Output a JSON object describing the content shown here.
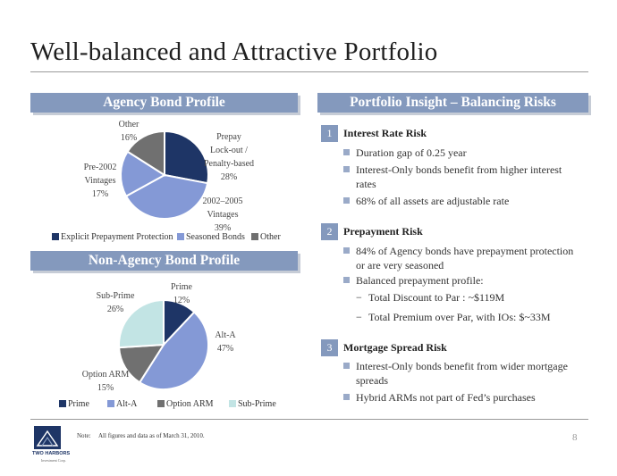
{
  "slide": {
    "title": "Well-balanced and Attractive Portfolio",
    "page_number": "8",
    "note_label": "Note:",
    "note_text": "All figures and data as of March 31, 2010.",
    "logo_name": "TWO HARBORS",
    "logo_sub": "Investment Corp."
  },
  "colors": {
    "banner": "#8499bd",
    "navy": "#1e3566",
    "blue": "#8499d6",
    "gray": "#707070",
    "mint": "#c2e4e4"
  },
  "left": {
    "agency_banner": "Agency Bond Profile",
    "nonagency_banner": "Non-Agency Bond Profile"
  },
  "chart_data": [
    {
      "type": "pie",
      "title": "Agency Bond Profile",
      "slices": [
        {
          "label": "Prepay Lock-out / Penalty-based",
          "value": 28,
          "pct_label": "28%",
          "color": "#1e3566"
        },
        {
          "label": "2002–2005 Vintages",
          "value": 39,
          "pct_label": "39%",
          "color": "#8499d6"
        },
        {
          "label": "Pre-2002 Vintages",
          "value": 17,
          "pct_label": "17%",
          "color": "#8499d6"
        },
        {
          "label": "Other",
          "value": 16,
          "pct_label": "16%",
          "color": "#707070"
        }
      ],
      "legend": [
        {
          "label": "Explicit Prepayment Protection",
          "color": "#1e3566"
        },
        {
          "label": "Seasoned Bonds",
          "color": "#8499d6"
        },
        {
          "label": "Other",
          "color": "#707070"
        }
      ],
      "legend_position": "bottom"
    },
    {
      "type": "pie",
      "title": "Non-Agency Bond Profile",
      "slices": [
        {
          "label": "Prime",
          "value": 12,
          "pct_label": "12%",
          "color": "#1e3566"
        },
        {
          "label": "Alt-A",
          "value": 47,
          "pct_label": "47%",
          "color": "#8499d6"
        },
        {
          "label": "Option ARM",
          "value": 15,
          "pct_label": "15%",
          "color": "#707070"
        },
        {
          "label": "Sub-Prime",
          "value": 26,
          "pct_label": "26%",
          "color": "#c2e4e4"
        }
      ],
      "legend": [
        {
          "label": "Prime",
          "color": "#1e3566"
        },
        {
          "label": "Alt-A",
          "color": "#8499d6"
        },
        {
          "label": "Option ARM",
          "color": "#707070"
        },
        {
          "label": "Sub-Prime",
          "color": "#c2e4e4"
        }
      ],
      "legend_position": "bottom"
    }
  ],
  "insight": {
    "banner": "Portfolio Insight – Balancing Risks",
    "sections": [
      {
        "num": "1",
        "heading": "Interest Rate Risk",
        "bullets": [
          "Duration gap of 0.25 year",
          "Interest-Only bonds benefit from higher interest\nrates",
          "68% of all assets are adjustable rate"
        ]
      },
      {
        "num": "2",
        "heading": "Prepayment Risk",
        "bullets": [
          "84% of Agency bonds have prepayment protection\nor are very seasoned",
          "Balanced prepayment profile:"
        ],
        "sub_bullets": [
          "Total Discount to Par : ~$119M",
          "Total Premium over Par, with IOs: $~33M"
        ]
      },
      {
        "num": "3",
        "heading": "Mortgage Spread Risk",
        "bullets": [
          "Interest-Only bonds benefit from wider mortgage\nspreads",
          "Hybrid ARMs not part of Fed’s purchases"
        ]
      }
    ]
  }
}
